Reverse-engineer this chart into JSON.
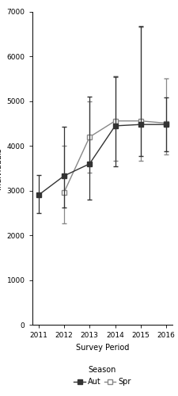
{
  "aut_x": [
    2011,
    2012,
    2013,
    2014,
    2015,
    2016
  ],
  "aut_y": [
    2900,
    3330,
    3600,
    4450,
    4480,
    4480
  ],
  "aut_yerr_lo": [
    400,
    700,
    800,
    900,
    700,
    600
  ],
  "aut_yerr_hi": [
    450,
    1100,
    1500,
    1100,
    2200,
    600
  ],
  "spr_x": [
    2012,
    2013,
    2014,
    2015,
    2016
  ],
  "spr_y": [
    2960,
    4200,
    4560,
    4560,
    4510
  ],
  "spr_yerr_lo": [
    700,
    800,
    900,
    900,
    700
  ],
  "spr_yerr_hi": [
    1050,
    800,
    1000,
    2100,
    1000
  ],
  "xlabel": "Survey Period",
  "ylim": [
    0,
    7000
  ],
  "yticks": [
    0,
    1000,
    2000,
    3000,
    4000,
    5000,
    6000,
    7000
  ],
  "xticks": [
    2011,
    2012,
    2013,
    2014,
    2015,
    2016
  ],
  "legend_title": "Season",
  "aut_label": "Aut",
  "spr_label": "Spr",
  "aut_color": "#333333",
  "spr_color": "#888888",
  "bg_color": "#ffffff",
  "label_fontsize": 7,
  "tick_fontsize": 6.5,
  "legend_fontsize": 7
}
